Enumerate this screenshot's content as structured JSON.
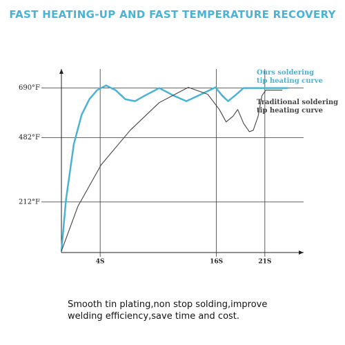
{
  "chart_data": {
    "type": "line",
    "title": "FAST HEATING-UP AND FAST TEMPERATURE RECOVERY",
    "caption": "Smooth tin plating,non stop solding,improve welding efficiency,save time and cost.",
    "series": [
      {
        "name": "Ours soldering tip heating curve",
        "color": "#4ab3d4",
        "x": [
          0,
          0.48,
          1.28,
          2.08,
          2.88,
          3.68,
          4.6,
          5.6,
          6.6,
          7.6,
          8.6,
          10.1,
          11.6,
          12.9,
          14.1,
          15.9,
          16.6,
          17.2,
          17.9,
          18.8,
          23.4
        ],
        "values": [
          6,
          223,
          455,
          577,
          643,
          681,
          701,
          681,
          643,
          635,
          658,
          690,
          658,
          635,
          658,
          693,
          658,
          635,
          658,
          690,
          690
        ]
      },
      {
        "name": "Traditional soldering tip heating curve",
        "color": "#444444",
        "x": [
          0,
          1.7,
          4.1,
          7.1,
          10.1,
          13.1,
          15.1,
          16.3,
          17.0,
          17.7,
          18.2,
          18.8,
          19.4,
          19.8,
          20.3,
          20.7,
          21.1,
          22.8
        ],
        "values": [
          6,
          194,
          368,
          513,
          629,
          693,
          664,
          600,
          548,
          571,
          600,
          542,
          507,
          513,
          571,
          658,
          681,
          681
        ]
      }
    ],
    "xlim": [
      0,
      25
    ],
    "ylim": [
      0,
      770
    ],
    "xticks": [
      {
        "value": 4,
        "label": "4S"
      },
      {
        "value": 16,
        "label": "16S"
      },
      {
        "value": 21,
        "label": "21S"
      }
    ],
    "yticks": [
      {
        "value": 212,
        "label": "212°F"
      },
      {
        "value": 482,
        "label": "482°F"
      },
      {
        "value": 690,
        "label": "690°F"
      }
    ],
    "grid": true,
    "legend": "right"
  }
}
